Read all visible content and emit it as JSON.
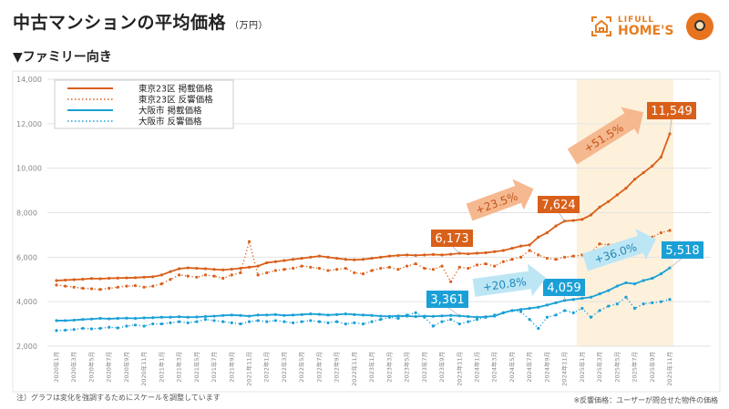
{
  "header": {
    "title": "中古マンションの平均価格",
    "unit": "（万円）",
    "subtitle": "▼ファミリー向き",
    "logo_text_top": "LIFULL",
    "logo_text_bottom": "HOME'S"
  },
  "footer": {
    "note_left": "注）グラフは変化を強調するためにスケールを調整しています",
    "note_right": "※反響価格：ユーザーが問合せた物件の価格"
  },
  "colors": {
    "tokyo": "#d9601a",
    "osaka": "#1aa0d6",
    "tokyo_arrow": "#f6b88f",
    "osaka_arrow": "#bde6f5",
    "highlight": "#fdf1dc"
  },
  "chart_data": {
    "type": "line",
    "ylim": [
      2000,
      14000
    ],
    "yticks": [
      "2,000",
      "4,000",
      "6,000",
      "8,000",
      "10,000",
      "12,000",
      "14,000"
    ],
    "ytick_values": [
      2000,
      4000,
      6000,
      8000,
      10000,
      12000,
      14000
    ],
    "grid": true,
    "legend_placement": "top-left",
    "highlight_range": [
      "2025年1月",
      "2025年11月"
    ],
    "x_start": "2020年1月",
    "x_end": "2025年11月",
    "xtick_labels": [
      "2020年1月",
      "2020年3月",
      "2020年5月",
      "2020年7月",
      "2020年9月",
      "2020年11月",
      "2021年1月",
      "2021年3月",
      "2021年5月",
      "2021年7月",
      "2021年9月",
      "2021年11月",
      "2022年1月",
      "2022年3月",
      "2022年5月",
      "2022年7月",
      "2022年9月",
      "2022年11月",
      "2023年1月",
      "2023年3月",
      "2023年5月",
      "2023年7月",
      "2023年9月",
      "2023年11月",
      "2024年1月",
      "2024年3月",
      "2024年5月",
      "2024年7月",
      "2024年9月",
      "2024年11月",
      "2025年1月",
      "2025年3月",
      "2025年5月",
      "2025年7月",
      "2025年9月",
      "2025年11月"
    ],
    "series": [
      {
        "name": "東京23区 掲載価格",
        "color": "#d9601a",
        "style": "solid",
        "values": [
          4950,
          4970,
          4990,
          5010,
          5040,
          5030,
          5050,
          5060,
          5070,
          5080,
          5100,
          5120,
          5200,
          5350,
          5480,
          5520,
          5500,
          5480,
          5450,
          5430,
          5460,
          5500,
          5550,
          5600,
          5750,
          5800,
          5850,
          5900,
          5950,
          6000,
          6050,
          6000,
          5950,
          5900,
          5880,
          5900,
          5950,
          6000,
          6050,
          6080,
          6100,
          6080,
          6100,
          6120,
          6100,
          6130,
          6173,
          6150,
          6180,
          6200,
          6250,
          6300,
          6400,
          6500,
          6550,
          6900,
          7100,
          7400,
          7624,
          7650,
          7700,
          7900,
          8250,
          8500,
          8800,
          9100,
          9500,
          9800,
          10100,
          10500,
          11549
        ]
      },
      {
        "name": "東京23区 反響価格",
        "color": "#d9601a",
        "style": "dotted",
        "values": [
          4750,
          4700,
          4650,
          4600,
          4580,
          4550,
          4600,
          4650,
          4700,
          4720,
          4650,
          4700,
          4800,
          5000,
          5200,
          5150,
          5100,
          5200,
          5150,
          5050,
          5200,
          5300,
          6700,
          5200,
          5300,
          5400,
          5450,
          5500,
          5600,
          5550,
          5500,
          5400,
          5450,
          5500,
          5300,
          5250,
          5400,
          5500,
          5550,
          5450,
          5600,
          5700,
          5500,
          5450,
          5600,
          4900,
          5550,
          5500,
          5650,
          5700,
          5600,
          5800,
          5900,
          6000,
          6300,
          6100,
          5950,
          5900,
          6000,
          6050,
          6100,
          6200,
          6600,
          6550,
          6600,
          6650,
          6500,
          6300,
          6900,
          7100,
          7200
        ]
      },
      {
        "name": "大阪市 掲載価格",
        "color": "#1aa0d6",
        "style": "solid",
        "values": [
          3150,
          3150,
          3170,
          3200,
          3220,
          3250,
          3230,
          3250,
          3260,
          3250,
          3270,
          3280,
          3300,
          3300,
          3320,
          3300,
          3310,
          3330,
          3350,
          3380,
          3400,
          3380,
          3350,
          3400,
          3400,
          3420,
          3380,
          3400,
          3420,
          3450,
          3430,
          3400,
          3420,
          3450,
          3420,
          3400,
          3380,
          3350,
          3340,
          3360,
          3350,
          3330,
          3350,
          3340,
          3360,
          3380,
          3361,
          3330,
          3300,
          3320,
          3350,
          3500,
          3600,
          3650,
          3700,
          3750,
          3850,
          3950,
          4059,
          4100,
          4150,
          4200,
          4350,
          4500,
          4700,
          4850,
          4800,
          4950,
          5050,
          5250,
          5518
        ]
      },
      {
        "name": "大阪市 反響価格",
        "color": "#1aa0d6",
        "style": "dotted",
        "values": [
          2700,
          2720,
          2750,
          2800,
          2780,
          2800,
          2850,
          2820,
          2900,
          2950,
          2900,
          3000,
          3000,
          3050,
          3100,
          3050,
          3100,
          3200,
          3150,
          3100,
          3050,
          3000,
          3100,
          3150,
          3100,
          3150,
          3100,
          3050,
          3100,
          3150,
          3100,
          3050,
          3100,
          3000,
          3050,
          3000,
          3100,
          3200,
          3300,
          3250,
          3400,
          3500,
          3300,
          2900,
          3100,
          3200,
          3000,
          3100,
          3200,
          3300,
          3400,
          3500,
          3600,
          3550,
          3200,
          2800,
          3300,
          3400,
          3600,
          3500,
          3700,
          3300,
          3600,
          3800,
          3900,
          4200,
          3700,
          3900,
          3950,
          4000,
          4100
        ]
      }
    ],
    "annotations": [
      {
        "label": "6,173",
        "series": 0,
        "at": "2023年11月"
      },
      {
        "label": "7,624",
        "series": 0,
        "at": "2024年11月"
      },
      {
        "label": "11,549",
        "series": 0,
        "at": "2025年11月"
      },
      {
        "label": "3,361",
        "series": 2,
        "at": "2023年11月"
      },
      {
        "label": "4,059",
        "series": 2,
        "at": "2024年11月"
      },
      {
        "label": "5,518",
        "series": 2,
        "at": "2025年11月"
      },
      {
        "label": "+23.5%",
        "from": "2023年11月",
        "to": "2024年11月",
        "series": 0
      },
      {
        "label": "+51.5%",
        "from": "2024年11月",
        "to": "2025年11月",
        "series": 0
      },
      {
        "label": "+20.8%",
        "from": "2023年11月",
        "to": "2024年11月",
        "series": 2
      },
      {
        "label": "+36.0%",
        "from": "2024年11月",
        "to": "2025年11月",
        "series": 2
      }
    ]
  }
}
